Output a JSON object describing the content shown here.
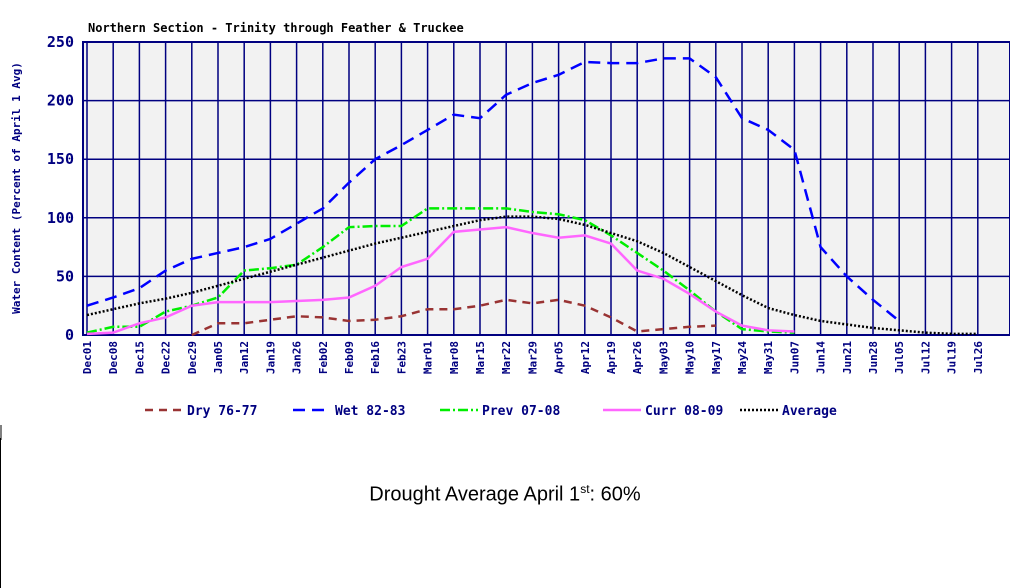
{
  "chart_data": {
    "type": "line",
    "title": "Northern Section - Trinity through Feather & Truckee",
    "y_label": "Water Content (Percent of April 1 Avg)",
    "categories": [
      "Dec01",
      "Dec08",
      "Dec15",
      "Dec22",
      "Dec29",
      "Jan05",
      "Jan12",
      "Jan19",
      "Jan26",
      "Feb02",
      "Feb09",
      "Feb16",
      "Feb23",
      "Mar01",
      "Mar08",
      "Mar15",
      "Mar22",
      "Mar29",
      "Apr05",
      "Apr12",
      "Apr19",
      "Apr26",
      "May03",
      "May10",
      "May17",
      "May24",
      "May31",
      "Jun07",
      "Jun14",
      "Jun21",
      "Jun28",
      "Jul05",
      "Jul12",
      "Jul19",
      "Jul26"
    ],
    "series": [
      {
        "name": "Dry 76-77",
        "color": "#993333",
        "dash": "8,6",
        "values": [
          null,
          null,
          null,
          null,
          0,
          10,
          10,
          13,
          16,
          15,
          12,
          13,
          16,
          22,
          22,
          25,
          30,
          27,
          30,
          25,
          15,
          3,
          5,
          7,
          8,
          null,
          null,
          null,
          null,
          null,
          null,
          null,
          null,
          null,
          null
        ]
      },
      {
        "name": "Wet 82-83",
        "color": "#0000ff",
        "dash": "12,7",
        "values": [
          25,
          32,
          40,
          55,
          65,
          70,
          75,
          82,
          95,
          108,
          130,
          150,
          162,
          175,
          188,
          185,
          205,
          215,
          222,
          233,
          232,
          232,
          236,
          236,
          220,
          185,
          175,
          158,
          75,
          50,
          30,
          12,
          null,
          null,
          null
        ]
      },
      {
        "name": "Prev 07-08",
        "color": "#00ee00",
        "dash": "10,3,2,3",
        "values": [
          2,
          7,
          7,
          20,
          25,
          32,
          55,
          57,
          60,
          75,
          92,
          93,
          93,
          108,
          108,
          108,
          108,
          105,
          103,
          98,
          85,
          70,
          55,
          38,
          20,
          5,
          3,
          2,
          null,
          null,
          null,
          null,
          null,
          null,
          null
        ]
      },
      {
        "name": "Curr 08-09",
        "color": "#ff66ff",
        "dash": "none",
        "values": [
          1,
          2,
          10,
          15,
          25,
          28,
          28,
          28,
          29,
          30,
          32,
          42,
          58,
          65,
          88,
          90,
          92,
          87,
          83,
          85,
          78,
          55,
          48,
          35,
          20,
          8,
          4,
          3,
          null,
          null,
          null,
          null,
          null,
          null,
          null
        ]
      },
      {
        "name": "Average",
        "color": "#000000",
        "dash": "2,2",
        "values": [
          17,
          22,
          27,
          31,
          36,
          42,
          48,
          54,
          60,
          66,
          72,
          78,
          83,
          88,
          93,
          98,
          101,
          101,
          99,
          94,
          87,
          80,
          70,
          58,
          46,
          34,
          23,
          17,
          12,
          9,
          6,
          4,
          2,
          1,
          1
        ]
      }
    ],
    "ylim": [
      0,
      250
    ],
    "yticks": [
      0,
      50,
      100,
      150,
      200,
      250
    ],
    "grid": true,
    "legend": "bottom"
  },
  "note": {
    "text": "Drought Average April 1",
    "sup": "st",
    "tail": ": 60%"
  }
}
